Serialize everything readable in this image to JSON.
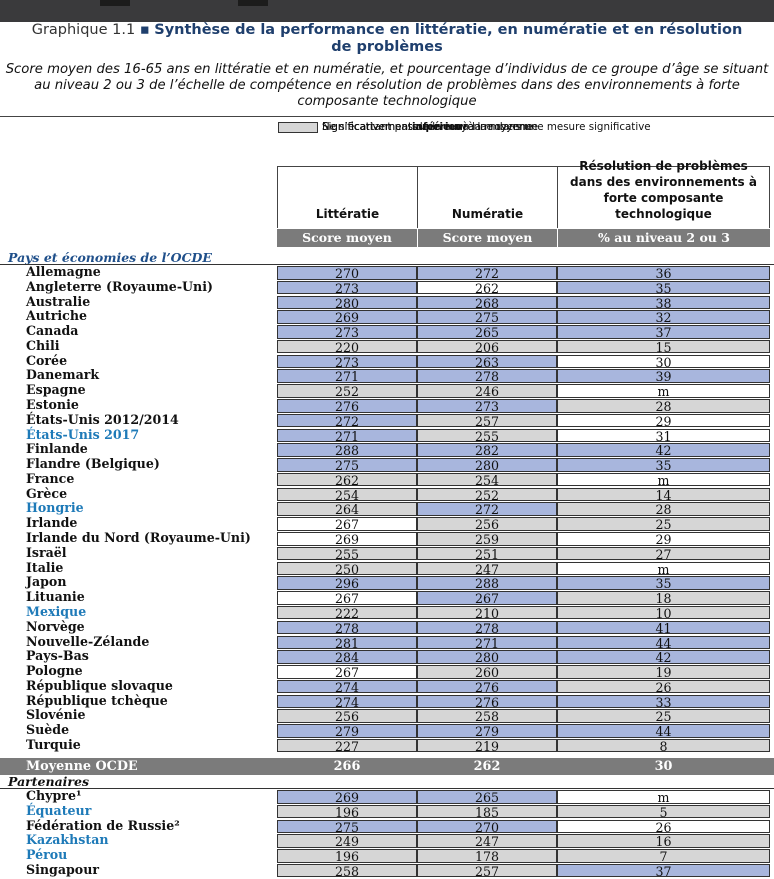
{
  "title": {
    "prefix": "Graphique 1.1 ",
    "bullet": "▪",
    "line1": "Synthèse de la performance en littératie, en numératie et en résolution",
    "line2": "de problèmes"
  },
  "subtitle": [
    "Score moyen des 16-65 ans en littératie et en numératie, et pourcentage d’individus de ce groupe d’âge se situant",
    "au niveau 2 ou 3 de l’échelle de compétence en résolution de problèmes dans des environnements à forte",
    "composante technologique"
  ],
  "legend": [
    {
      "key": "notsig",
      "color": "#ffffff",
      "parts": [
        "Ne s’écartant pas de la moyenne dans une mesure significative",
        "",
        ""
      ]
    },
    {
      "key": "above",
      "color": "#a8b6dd",
      "parts": [
        "Significativement ",
        "supérieur",
        " à la moyenne"
      ]
    },
    {
      "key": "below",
      "color": "#d6d6d6",
      "parts": [
        "Significativement ",
        "inférieur",
        " à la moyenne"
      ]
    }
  ],
  "columns": [
    {
      "header": [
        "Littératie"
      ],
      "sub": "Score moyen"
    },
    {
      "header": [
        "Numératie"
      ],
      "sub": "Score moyen"
    },
    {
      "header": [
        "Résolution de problèmes",
        "dans des environnements à",
        "forte composante technologique"
      ],
      "sub": "% au niveau 2 ou 3"
    }
  ],
  "sections": {
    "oecd": "Pays et économies de l’OCDE",
    "partners": "Partenaires"
  },
  "rows": [
    {
      "name": "Allemagne",
      "blue": false,
      "v": [
        "270",
        "272",
        "36"
      ],
      "s": [
        "above",
        "above",
        "above"
      ]
    },
    {
      "name": "Angleterre (Royaume-Uni)",
      "blue": false,
      "v": [
        "273",
        "262",
        "35"
      ],
      "s": [
        "above",
        "notsig",
        "above"
      ]
    },
    {
      "name": "Australie",
      "blue": false,
      "v": [
        "280",
        "268",
        "38"
      ],
      "s": [
        "above",
        "above",
        "above"
      ]
    },
    {
      "name": "Autriche",
      "blue": false,
      "v": [
        "269",
        "275",
        "32"
      ],
      "s": [
        "above",
        "above",
        "above"
      ]
    },
    {
      "name": "Canada",
      "blue": false,
      "v": [
        "273",
        "265",
        "37"
      ],
      "s": [
        "above",
        "above",
        "above"
      ]
    },
    {
      "name": "Chili",
      "blue": false,
      "v": [
        "220",
        "206",
        "15"
      ],
      "s": [
        "below",
        "below",
        "below"
      ]
    },
    {
      "name": "Corée",
      "blue": false,
      "v": [
        "273",
        "263",
        "30"
      ],
      "s": [
        "above",
        "above",
        "notsig"
      ]
    },
    {
      "name": "Danemark",
      "blue": false,
      "v": [
        "271",
        "278",
        "39"
      ],
      "s": [
        "above",
        "above",
        "above"
      ]
    },
    {
      "name": "Espagne",
      "blue": false,
      "v": [
        "252",
        "246",
        "m"
      ],
      "s": [
        "below",
        "below",
        "notsig"
      ]
    },
    {
      "name": "Estonie",
      "blue": false,
      "v": [
        "276",
        "273",
        "28"
      ],
      "s": [
        "above",
        "above",
        "below"
      ]
    },
    {
      "name": "États-Unis 2012/2014",
      "blue": false,
      "v": [
        "272",
        "257",
        "29"
      ],
      "s": [
        "above",
        "below",
        "notsig"
      ]
    },
    {
      "name": "États-Unis 2017",
      "blue": true,
      "v": [
        "271",
        "255",
        "31"
      ],
      "s": [
        "above",
        "below",
        "notsig"
      ]
    },
    {
      "name": "Finlande",
      "blue": false,
      "v": [
        "288",
        "282",
        "42"
      ],
      "s": [
        "above",
        "above",
        "above"
      ]
    },
    {
      "name": "Flandre (Belgique)",
      "blue": false,
      "v": [
        "275",
        "280",
        "35"
      ],
      "s": [
        "above",
        "above",
        "above"
      ]
    },
    {
      "name": "France",
      "blue": false,
      "v": [
        "262",
        "254",
        "m"
      ],
      "s": [
        "below",
        "below",
        "notsig"
      ]
    },
    {
      "name": "Grèce",
      "blue": false,
      "v": [
        "254",
        "252",
        "14"
      ],
      "s": [
        "below",
        "below",
        "below"
      ]
    },
    {
      "name": "Hongrie",
      "blue": true,
      "v": [
        "264",
        "272",
        "28"
      ],
      "s": [
        "below",
        "above",
        "below"
      ]
    },
    {
      "name": "Irlande",
      "blue": false,
      "v": [
        "267",
        "256",
        "25"
      ],
      "s": [
        "notsig",
        "below",
        "below"
      ]
    },
    {
      "name": "Irlande du Nord (Royaume-Uni)",
      "blue": false,
      "v": [
        "269",
        "259",
        "29"
      ],
      "s": [
        "notsig",
        "below",
        "notsig"
      ]
    },
    {
      "name": "Israël",
      "blue": false,
      "v": [
        "255",
        "251",
        "27"
      ],
      "s": [
        "below",
        "below",
        "below"
      ]
    },
    {
      "name": "Italie",
      "blue": false,
      "v": [
        "250",
        "247",
        "m"
      ],
      "s": [
        "below",
        "below",
        "notsig"
      ]
    },
    {
      "name": "Japon",
      "blue": false,
      "v": [
        "296",
        "288",
        "35"
      ],
      "s": [
        "above",
        "above",
        "above"
      ]
    },
    {
      "name": "Lituanie",
      "blue": false,
      "v": [
        "267",
        "267",
        "18"
      ],
      "s": [
        "notsig",
        "above",
        "below"
      ]
    },
    {
      "name": "Mexique",
      "blue": true,
      "v": [
        "222",
        "210",
        "10"
      ],
      "s": [
        "below",
        "below",
        "below"
      ]
    },
    {
      "name": "Norvège",
      "blue": false,
      "v": [
        "278",
        "278",
        "41"
      ],
      "s": [
        "above",
        "above",
        "above"
      ]
    },
    {
      "name": "Nouvelle-Zélande",
      "blue": false,
      "v": [
        "281",
        "271",
        "44"
      ],
      "s": [
        "above",
        "above",
        "above"
      ]
    },
    {
      "name": "Pays-Bas",
      "blue": false,
      "v": [
        "284",
        "280",
        "42"
      ],
      "s": [
        "above",
        "above",
        "above"
      ]
    },
    {
      "name": "Pologne",
      "blue": false,
      "v": [
        "267",
        "260",
        "19"
      ],
      "s": [
        "notsig",
        "below",
        "below"
      ]
    },
    {
      "name": "République slovaque",
      "blue": false,
      "v": [
        "274",
        "276",
        "26"
      ],
      "s": [
        "above",
        "above",
        "below"
      ]
    },
    {
      "name": "République tchèque",
      "blue": false,
      "v": [
        "274",
        "276",
        "33"
      ],
      "s": [
        "above",
        "above",
        "above"
      ]
    },
    {
      "name": "Slovénie",
      "blue": false,
      "v": [
        "256",
        "258",
        "25"
      ],
      "s": [
        "below",
        "below",
        "below"
      ]
    },
    {
      "name": "Suède",
      "blue": false,
      "v": [
        "279",
        "279",
        "44"
      ],
      "s": [
        "above",
        "above",
        "above"
      ]
    },
    {
      "name": "Turquie",
      "blue": false,
      "v": [
        "227",
        "219",
        "8"
      ],
      "s": [
        "below",
        "below",
        "below"
      ]
    }
  ],
  "average": {
    "name": "Moyenne OCDE",
    "v": [
      "266",
      "262",
      "30"
    ]
  },
  "partners": [
    {
      "name": "Chypre¹",
      "blue": false,
      "v": [
        "269",
        "265",
        "m"
      ],
      "s": [
        "above",
        "above",
        "notsig"
      ]
    },
    {
      "name": "Équateur",
      "blue": true,
      "v": [
        "196",
        "185",
        "5"
      ],
      "s": [
        "below",
        "below",
        "below"
      ]
    },
    {
      "name": "Fédération de Russie²",
      "blue": false,
      "v": [
        "275",
        "270",
        "26"
      ],
      "s": [
        "above",
        "above",
        "notsig"
      ]
    },
    {
      "name": "Kazakhstan",
      "blue": true,
      "v": [
        "249",
        "247",
        "16"
      ],
      "s": [
        "below",
        "below",
        "below"
      ]
    },
    {
      "name": "Pérou",
      "blue": true,
      "v": [
        "196",
        "178",
        "7"
      ],
      "s": [
        "below",
        "below",
        "below"
      ]
    },
    {
      "name": "Singapour",
      "blue": false,
      "v": [
        "258",
        "257",
        "37"
      ],
      "s": [
        "below",
        "below",
        "above"
      ]
    }
  ]
}
